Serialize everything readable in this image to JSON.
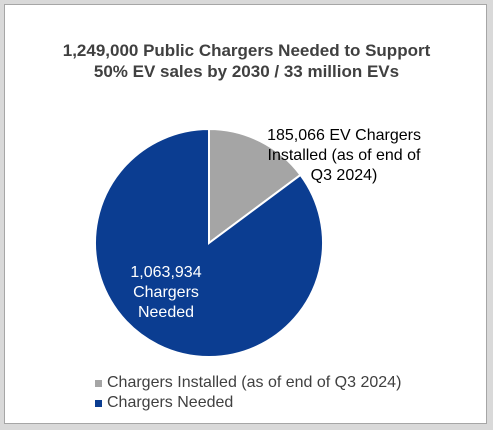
{
  "chart_data": {
    "type": "pie",
    "title_lines": [
      "1,249,000 Public Chargers Needed to Support",
      "50% EV sales by 2030 / 33 million EVs"
    ],
    "slices": [
      {
        "name": "Chargers Installed (as of end of Q3 2024)",
        "value": 185066,
        "color": "#a5a5a5",
        "label_lines": [
          "185,066 EV Chargers",
          "Installed (as of end of",
          "Q3 2024)"
        ]
      },
      {
        "name": "Chargers Needed",
        "value": 1063934,
        "color": "#0b3d91",
        "label_lines": [
          "1,063,934",
          "Chargers",
          "Needed"
        ]
      }
    ],
    "legend_position": "bottom-left"
  }
}
